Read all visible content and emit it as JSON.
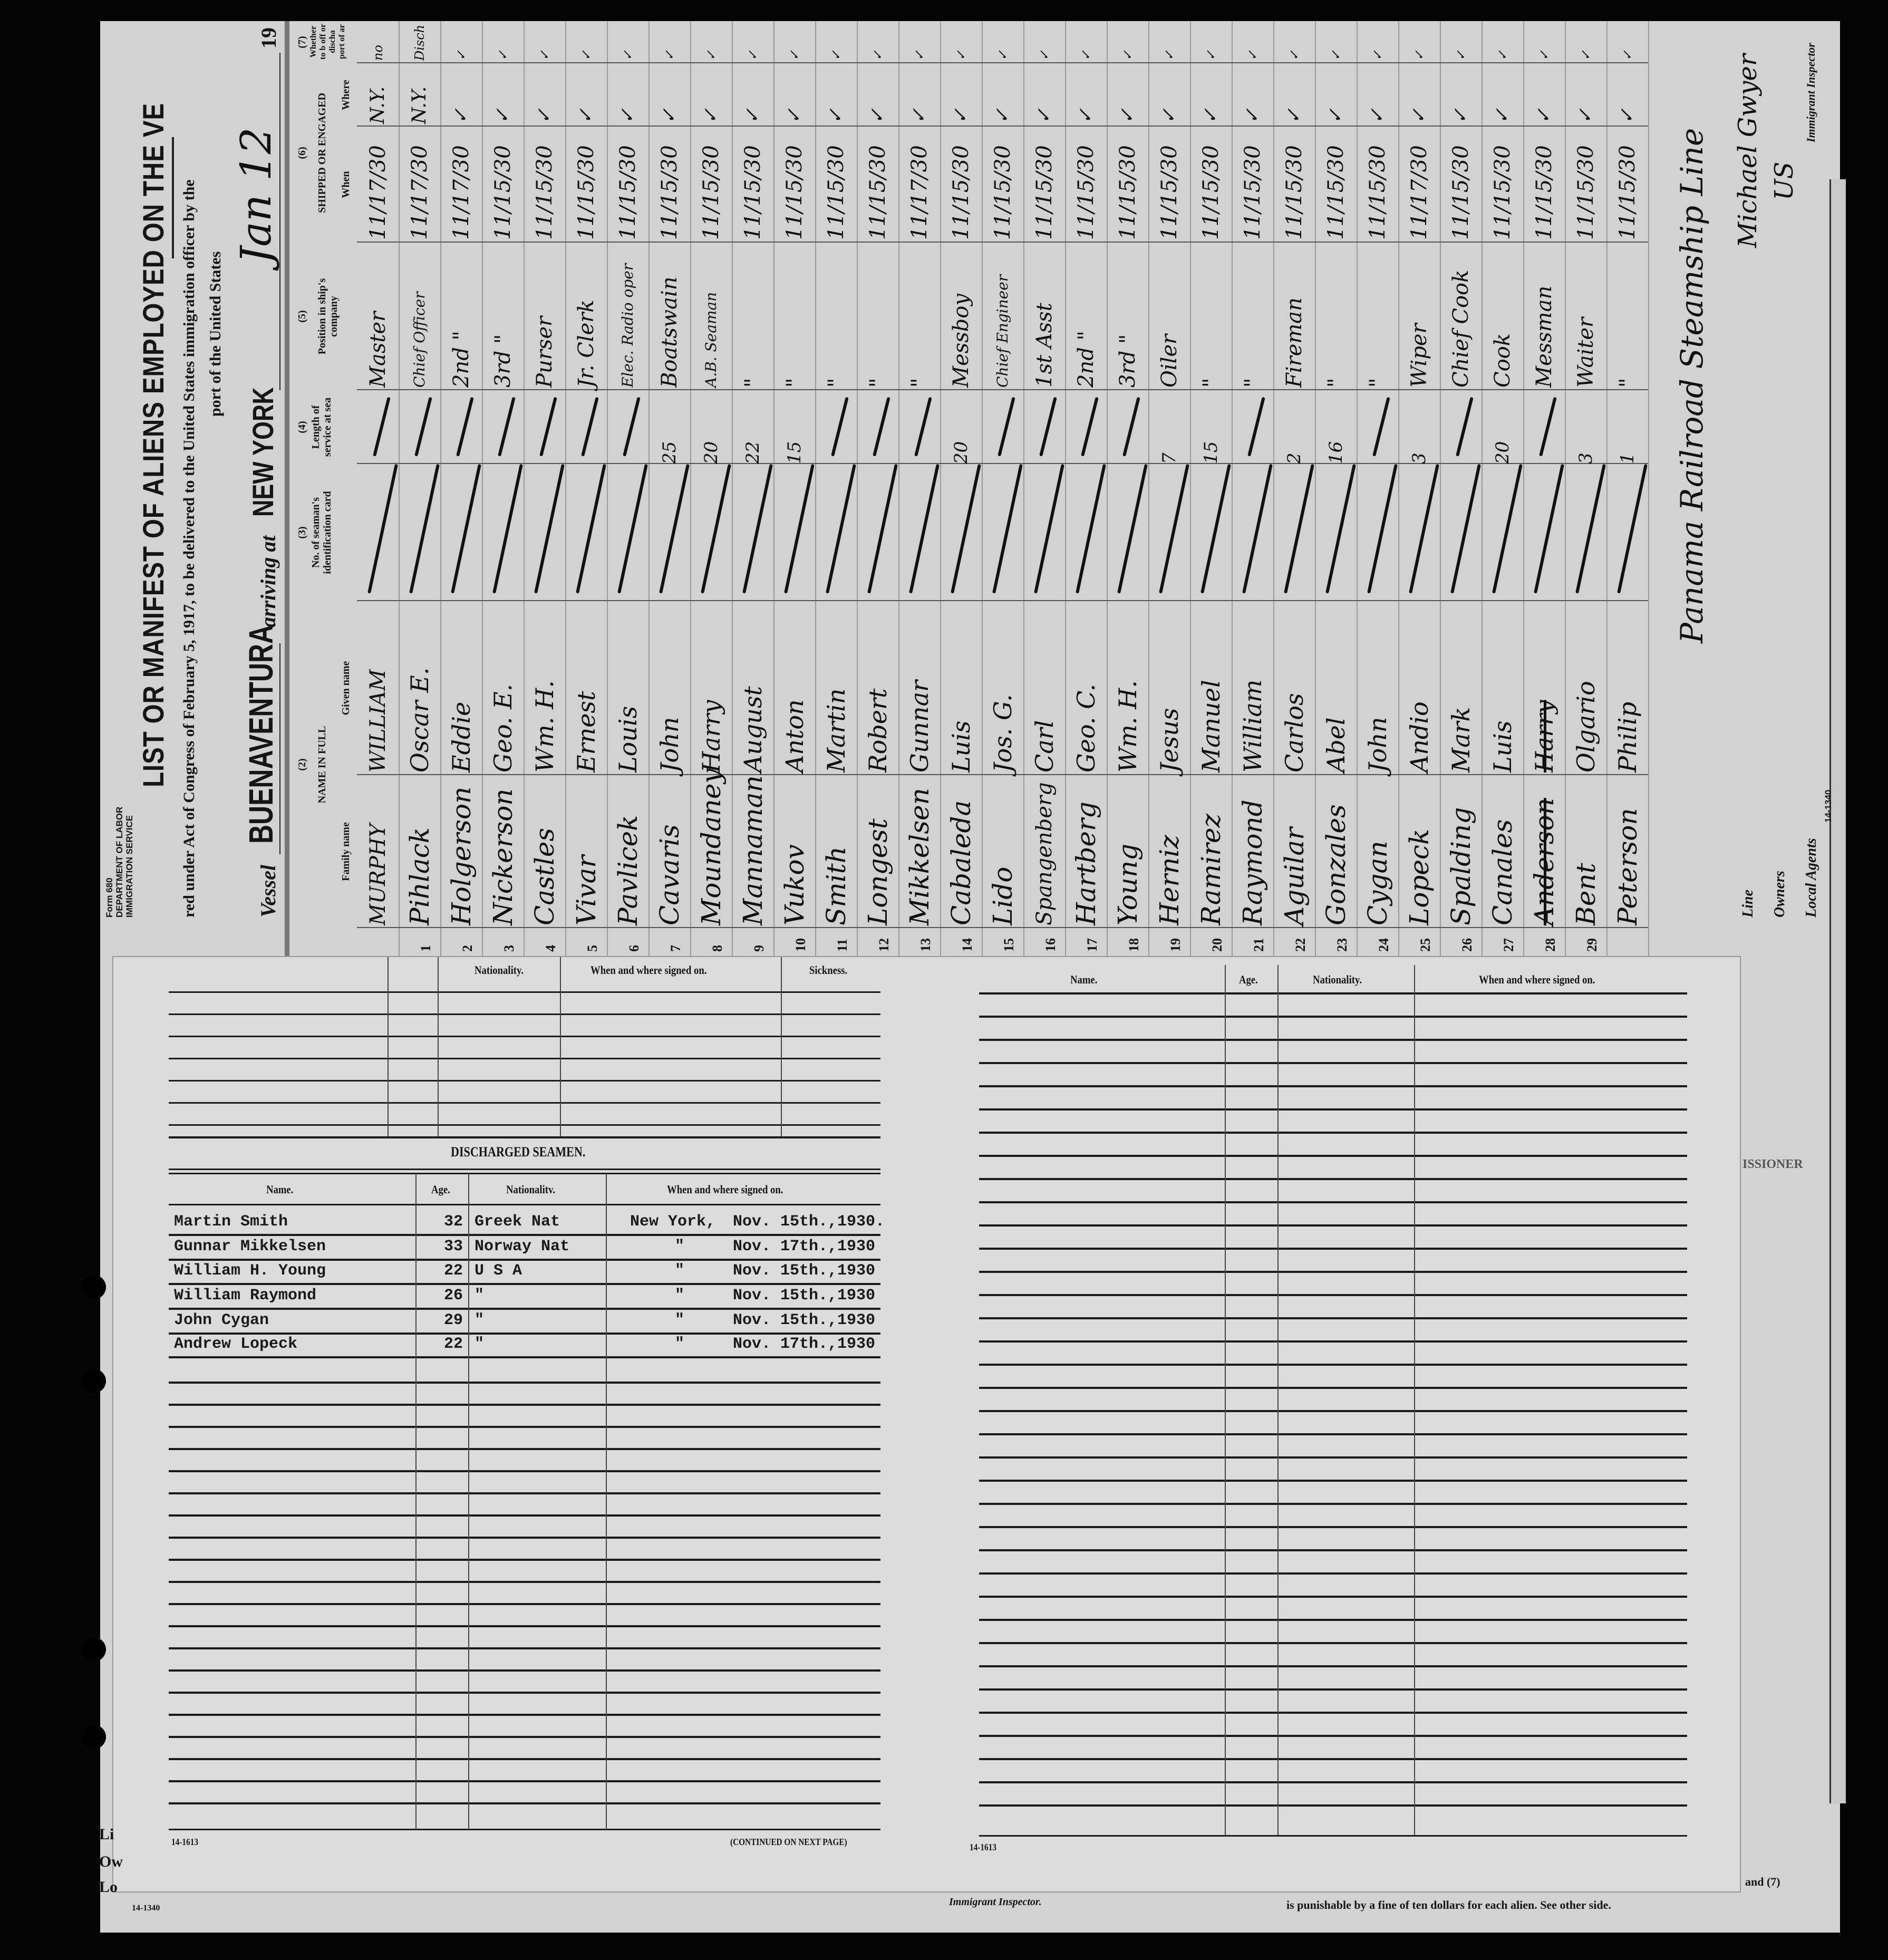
{
  "manifest": {
    "form_label": [
      "Form 680",
      "DEPARTMENT OF LABOR",
      "IMMIGRATION SERVICE"
    ],
    "title": "LIST OR MANIFEST OF ALIENS EMPLOYED ON THE VE",
    "subtitle": "red under Act of Congress of February 5, 1917, to be delivered to the United States immigration officer by the",
    "subtitle2": "port of the United States",
    "vessel_label": "Vessel",
    "vessel_name": "BUENAVENTURA",
    "arriving_label": "arriving at",
    "port": "NEW YORK",
    "date": "Jan 12",
    "year_label": "19",
    "headers": {
      "col2_num": "(2)",
      "col2": "NAME IN FULL",
      "family": "Family name",
      "given": "Given name",
      "col3_num": "(3)",
      "col3": "No. of seaman's identification card",
      "col4_num": "(4)",
      "col4": "Length of service at sea",
      "col5_num": "(5)",
      "col5": "Position in ship's company",
      "col6_num": "(6)",
      "col6": "SHIPPED OR ENGAGED",
      "when": "When",
      "where": "Where",
      "col7_num": "(7)",
      "col7": "Whether to b off or discha port of ar"
    },
    "crew": [
      {
        "no": "",
        "family": "MURPHY",
        "given": "WILLIAM",
        "length": "",
        "position": "Master",
        "when": "11/17/30",
        "where": "N.Y.",
        "discharge": "no"
      },
      {
        "no": "1",
        "family": "Pihlack",
        "given": "Oscar E.",
        "length": "",
        "position": "Chief Officer",
        "when": "11/17/30",
        "where": "N.Y.",
        "discharge": "Disch"
      },
      {
        "no": "2",
        "family": "Holgerson",
        "given": "Eddie",
        "length": "",
        "position": "2nd \"",
        "when": "11/17/30",
        "where": "✓",
        "discharge": "✓"
      },
      {
        "no": "3",
        "family": "Nickerson",
        "given": "Geo. E.",
        "length": "",
        "position": "3rd \"",
        "when": "11/15/30",
        "where": "✓",
        "discharge": "✓"
      },
      {
        "no": "4",
        "family": "Castles",
        "given": "Wm. H.",
        "length": "",
        "position": "Purser",
        "when": "11/15/30",
        "where": "✓",
        "discharge": "✓"
      },
      {
        "no": "5",
        "family": "Vivar",
        "given": "Ernest",
        "length": "",
        "position": "Jr. Clerk",
        "when": "11/15/30",
        "where": "✓",
        "discharge": "✓"
      },
      {
        "no": "6",
        "family": "Pavlicek",
        "given": "Louis",
        "length": "",
        "position": "Elec. Radio oper",
        "when": "11/15/30",
        "where": "✓",
        "discharge": "✓"
      },
      {
        "no": "7",
        "family": "Cavaris",
        "given": "John",
        "length": "25",
        "position": "Boatswain",
        "when": "11/15/30",
        "where": "✓",
        "discharge": "✓"
      },
      {
        "no": "8",
        "family": "Moundaney",
        "given": "Harry",
        "length": "20",
        "position": "A.B. Seaman",
        "when": "11/15/30",
        "where": "✓",
        "discharge": "✓"
      },
      {
        "no": "9",
        "family": "Mannaman",
        "given": "August",
        "length": "22",
        "position": "\"",
        "when": "11/15/30",
        "where": "✓",
        "discharge": "✓"
      },
      {
        "no": "10",
        "family": "Vukov",
        "given": "Anton",
        "length": "15",
        "position": "\"",
        "when": "11/15/30",
        "where": "✓",
        "discharge": "✓"
      },
      {
        "no": "11",
        "family": "Smith",
        "given": "Martin",
        "length": "",
        "position": "\"",
        "when": "11/15/30",
        "where": "✓",
        "discharge": "✓"
      },
      {
        "no": "12",
        "family": "Longest",
        "given": "Robert",
        "length": "",
        "position": "\"",
        "when": "11/15/30",
        "where": "✓",
        "discharge": "✓"
      },
      {
        "no": "13",
        "family": "Mikkelsen",
        "given": "Gunnar",
        "length": "",
        "position": "\"",
        "when": "11/17/30",
        "where": "✓",
        "discharge": "✓"
      },
      {
        "no": "14",
        "family": "Cabaleda",
        "given": "Luis",
        "length": "20",
        "position": "Messboy",
        "when": "11/15/30",
        "where": "✓",
        "discharge": "✓"
      },
      {
        "no": "15",
        "family": "Lido",
        "given": "Jos. G.",
        "length": "",
        "position": "Chief Engineer",
        "when": "11/15/30",
        "where": "✓",
        "discharge": "✓"
      },
      {
        "no": "16",
        "family": "Spangenberg",
        "given": "Carl",
        "length": "",
        "position": "1st Asst",
        "when": "11/15/30",
        "where": "✓",
        "discharge": "✓"
      },
      {
        "no": "17",
        "family": "Hartberg",
        "given": "Geo. C.",
        "length": "",
        "position": "2nd \"",
        "when": "11/15/30",
        "where": "✓",
        "discharge": "✓"
      },
      {
        "no": "18",
        "family": "Young",
        "given": "Wm. H.",
        "length": "",
        "position": "3rd \"",
        "when": "11/15/30",
        "where": "✓",
        "discharge": "✓"
      },
      {
        "no": "19",
        "family": "Herniz",
        "given": "Jesus",
        "length": "7",
        "position": "Oiler",
        "when": "11/15/30",
        "where": "✓",
        "discharge": "✓"
      },
      {
        "no": "20",
        "family": "Ramirez",
        "given": "Manuel",
        "length": "15",
        "position": "\"",
        "when": "11/15/30",
        "where": "✓",
        "discharge": "✓"
      },
      {
        "no": "21",
        "family": "Raymond",
        "given": "William",
        "length": "",
        "position": "\"",
        "when": "11/15/30",
        "where": "✓",
        "discharge": "✓"
      },
      {
        "no": "22",
        "family": "Aguilar",
        "given": "Carlos",
        "length": "2",
        "position": "Fireman",
        "when": "11/15/30",
        "where": "✓",
        "discharge": "✓"
      },
      {
        "no": "23",
        "family": "Gonzales",
        "given": "Abel",
        "length": "16",
        "position": "\"",
        "when": "11/15/30",
        "where": "✓",
        "discharge": "✓"
      },
      {
        "no": "24",
        "family": "Cygan",
        "given": "John",
        "length": "",
        "position": "\"",
        "when": "11/15/30",
        "where": "✓",
        "discharge": "✓"
      },
      {
        "no": "25",
        "family": "Lopeck",
        "given": "Andio",
        "length": "3",
        "position": "Wiper",
        "when": "11/17/30",
        "where": "✓",
        "discharge": "✓"
      },
      {
        "no": "26",
        "family": "Spalding",
        "given": "Mark",
        "length": "",
        "position": "Chief Cook",
        "when": "11/15/30",
        "where": "✓",
        "discharge": "✓"
      },
      {
        "no": "27",
        "family": "Canales",
        "given": "Luis",
        "length": "20",
        "position": "Cook",
        "when": "11/15/30",
        "where": "✓",
        "discharge": "✓"
      },
      {
        "no": "28",
        "family": "Anderson",
        "given": "Harry",
        "length": "",
        "position": "Messman",
        "when": "11/15/30",
        "where": "✓",
        "discharge": "✓",
        "struck": true
      },
      {
        "no": "29",
        "family": "Bent",
        "given": "Olgario",
        "length": "3",
        "position": "Waiter",
        "when": "11/15/30",
        "where": "✓",
        "discharge": "✓"
      },
      {
        "no": "",
        "family": "Peterson",
        "given": "Philip",
        "length": "1",
        "position": "\"",
        "when": "11/15/30",
        "where": "✓",
        "discharge": "✓"
      }
    ],
    "owners_value": "Panama Railroad Steamship Line",
    "line_label": "Line",
    "owners_label": "Owners",
    "agents_label": "Local Agents",
    "form_number": "14-1340",
    "inspector_signature": "Michael Gwyer",
    "inspector_label": "Immigrant Inspector",
    "inspector_initials": "US"
  },
  "discharge_sheet": {
    "upper_headers": {
      "nationality": "Nationality.",
      "when_where": "When and where signed on.",
      "sickness": "Sickness."
    },
    "section_title": "DISCHARGED SEAMEN.",
    "columns": {
      "name": "Name.",
      "age": "Age.",
      "nationality": "Nationalitv.",
      "when_where": "When and where signed on."
    },
    "rows": [
      {
        "name": "Martin Smith",
        "age": "32",
        "nationality": "Greek  Nat",
        "place": "New York,",
        "date": "Nov. 15th.,1930."
      },
      {
        "name": "Gunnar Mikkelsen",
        "age": "33",
        "nationality": "Norway Nat",
        "place": "\"",
        "date": "Nov. 17th.,1930"
      },
      {
        "name": "William H. Young",
        "age": "22",
        "nationality": "U S A",
        "place": "\"",
        "date": "Nov. 15th.,1930"
      },
      {
        "name": "William Raymond",
        "age": "26",
        "nationality": "\"",
        "place": "\"",
        "date": "Nov. 15th.,1930"
      },
      {
        "name": "John Cygan",
        "age": "29",
        "nationality": "\"",
        "place": "\"",
        "date": "Nov. 15th.,1930"
      },
      {
        "name": "Andrew Lopeck",
        "age": "22",
        "nationality": "\"",
        "place": "\"",
        "date": "Nov. 17th.,1930"
      }
    ],
    "right_columns": {
      "name": "Name.",
      "age": "Age.",
      "nationality": "Nationality.",
      "when_where": "When and where signed on."
    },
    "form_number_left": "14-1613",
    "continued": "(CONTINUED ON NEXT PAGE)",
    "form_number_right": "14-1613"
  },
  "under_sheet": {
    "line_frag": "Li",
    "owners_frag": "Ow",
    "local_frag": "Lo",
    "form_number": "14-1340",
    "inspector": "Immigrant Inspector.",
    "penalty": "is punishable by a fine of ten dollars for each alien.  See other side.",
    "col_ref": "and (7)",
    "stamp_frag": "ISSIONER"
  }
}
